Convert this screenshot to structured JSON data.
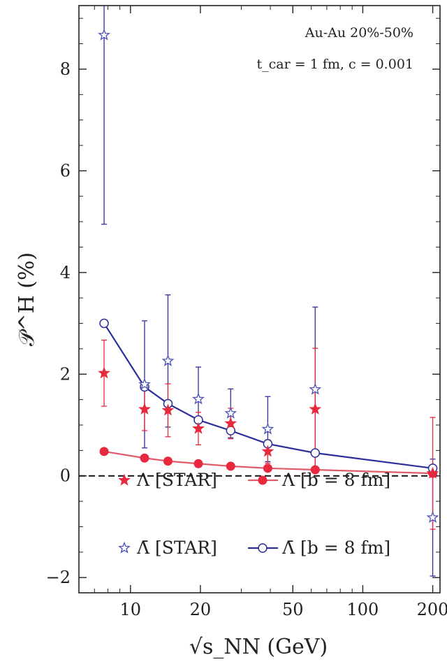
{
  "chart_data": {
    "type": "scatter",
    "title": "",
    "xlabel": "√s_NN (GeV)",
    "ylabel": "𝒫^H (%)",
    "xscale": "log",
    "xlim": [
      6.0,
      215
    ],
    "ylim": [
      -2.3,
      9.25
    ],
    "xticks": [
      {
        "value": 10,
        "label": "10"
      },
      {
        "value": 20,
        "label": "20"
      },
      {
        "value": 50,
        "label": "50"
      },
      {
        "value": 100,
        "label": "100"
      },
      {
        "value": 200,
        "label": "200"
      }
    ],
    "yticks": [
      {
        "value": -2,
        "label": "−2"
      },
      {
        "value": 0,
        "label": "0"
      },
      {
        "value": 2,
        "label": "2"
      },
      {
        "value": 4,
        "label": "4"
      },
      {
        "value": 6,
        "label": "6"
      },
      {
        "value": 8,
        "label": "8"
      }
    ],
    "annotations": {
      "line1": "Au-Au  20%-50%",
      "line2": "t_car = 1 fm,    c = 0.001"
    },
    "legend": {
      "placement": "bottom",
      "entries": [
        {
          "key": "lambda_star",
          "label": "Λ [STAR]"
        },
        {
          "key": "antilambda_star",
          "label": "Λ̄ [STAR]"
        },
        {
          "key": "lambda_model",
          "label": "Λ [b = 8 fm]"
        },
        {
          "key": "antilambda_model",
          "label": "Λ̄ [b = 8 fm]"
        }
      ]
    },
    "colors": {
      "red": "#e8293e",
      "red_line": "#e05a6a",
      "blue": "#2c2f9a",
      "blue_marker": "#4b4fb8",
      "zero_line": "#111111"
    },
    "series": [
      {
        "key": "lambda_star",
        "name": "Λ [STAR]",
        "x": [
          7.7,
          11.5,
          14.5,
          19.6,
          27,
          39,
          62.4,
          200
        ],
        "y": [
          2.02,
          1.31,
          1.29,
          0.93,
          1.03,
          0.48,
          1.31,
          0.05
        ],
        "err": [
          0.65,
          0.42,
          0.52,
          0.32,
          0.3,
          0.23,
          1.2,
          1.1
        ]
      },
      {
        "key": "antilambda_star",
        "name": "Λ̄ [STAR]",
        "x": [
          7.7,
          11.5,
          14.5,
          19.6,
          27,
          39,
          62.4,
          200
        ],
        "y": [
          8.67,
          1.8,
          2.26,
          1.51,
          1.23,
          0.92,
          1.7,
          -0.82
        ],
        "err": [
          3.72,
          1.25,
          1.3,
          0.63,
          0.48,
          0.64,
          1.62,
          1.15
        ]
      },
      {
        "key": "lambda_model",
        "name": "Λ [b = 8 fm]",
        "x": [
          7.7,
          11.5,
          14.5,
          19.6,
          27,
          39,
          62.4,
          200
        ],
        "y": [
          0.48,
          0.35,
          0.29,
          0.24,
          0.19,
          0.15,
          0.12,
          0.05
        ]
      },
      {
        "key": "antilambda_model",
        "name": "Λ̄ [b = 8 fm]",
        "x": [
          7.7,
          11.5,
          14.5,
          19.6,
          27,
          39,
          62.4,
          200
        ],
        "y": [
          3.0,
          1.75,
          1.42,
          1.1,
          0.89,
          0.63,
          0.45,
          0.15
        ]
      }
    ]
  }
}
